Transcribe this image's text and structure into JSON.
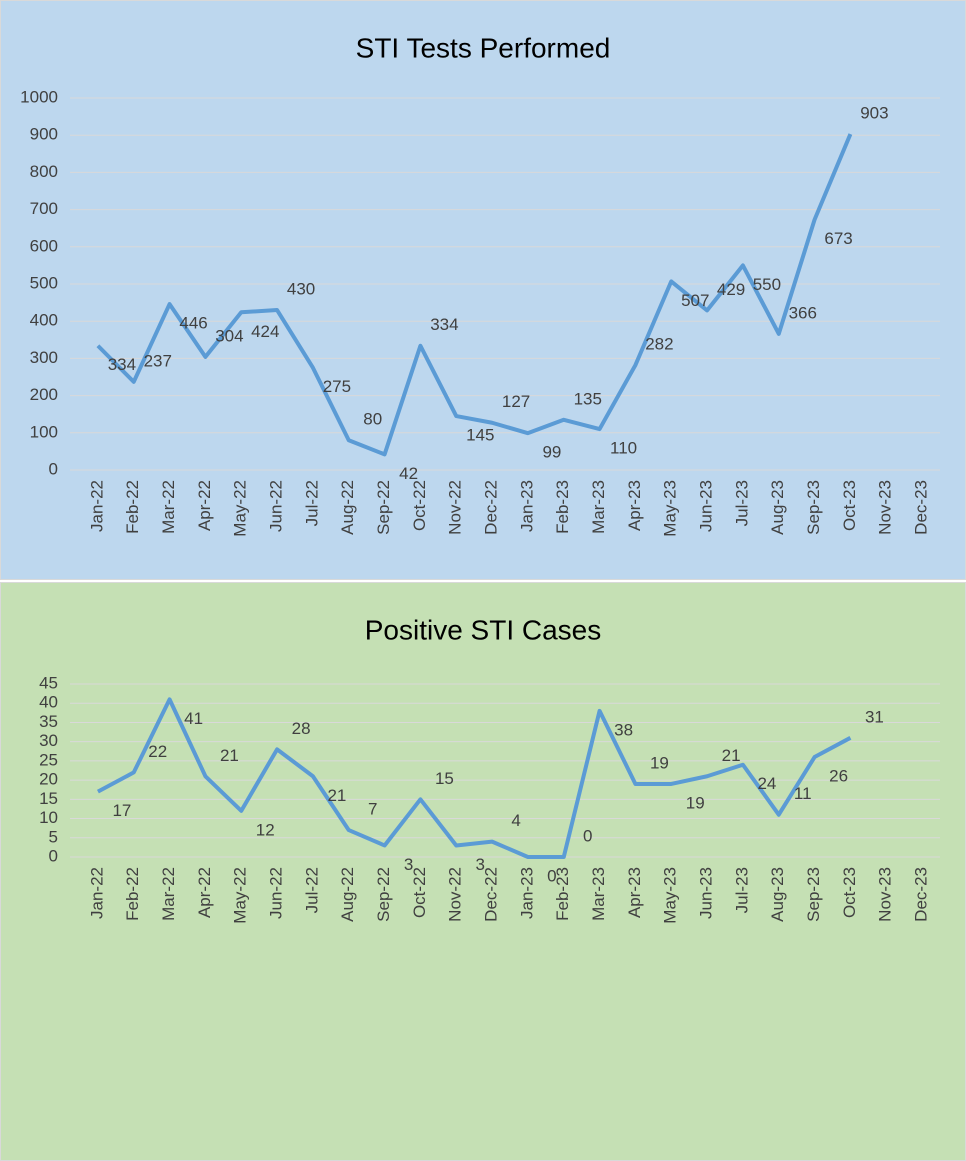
{
  "chart_data": [
    {
      "type": "line",
      "title": "STI Tests Performed",
      "background": "#bdd7ee",
      "categories": [
        "Jan-22",
        "Feb-22",
        "Mar-22",
        "Apr-22",
        "May-22",
        "Jun-22",
        "Jul-22",
        "Aug-22",
        "Sep-22",
        "Oct-22",
        "Nov-22",
        "Dec-22",
        "Jan-23",
        "Feb-23",
        "Mar-23",
        "Apr-23",
        "May-23",
        "Jun-23",
        "Jul-23",
        "Aug-23",
        "Sep-23",
        "Oct-23",
        "Nov-23",
        "Dec-23"
      ],
      "series": [
        {
          "name": "STI Tests Performed",
          "color": "#5b9bd5",
          "values": [
            334,
            237,
            446,
            304,
            424,
            430,
            275,
            80,
            42,
            334,
            145,
            127,
            99,
            135,
            110,
            282,
            507,
            429,
            550,
            366,
            673,
            903,
            null,
            null
          ]
        }
      ],
      "ylim": [
        0,
        1000
      ],
      "yticks": [
        0,
        100,
        200,
        300,
        400,
        500,
        600,
        700,
        800,
        900,
        1000
      ],
      "grid": true
    },
    {
      "type": "line",
      "title": "Positive STI Cases",
      "background": "#c5e0b4",
      "categories": [
        "Jan-22",
        "Feb-22",
        "Mar-22",
        "Apr-22",
        "May-22",
        "Jun-22",
        "Jul-22",
        "Aug-22",
        "Sep-22",
        "Oct-22",
        "Nov-22",
        "Dec-22",
        "Jan-23",
        "Feb-23",
        "Mar-23",
        "Apr-23",
        "May-23",
        "Jun-23",
        "Jul-23",
        "Aug-23",
        "Sep-23",
        "Oct-23",
        "Nov-23",
        "Dec-23"
      ],
      "series": [
        {
          "name": "Positive STI Cases",
          "color": "#5b9bd5",
          "values": [
            17,
            22,
            41,
            21,
            12,
            28,
            21,
            7,
            3,
            15,
            3,
            4,
            0,
            0,
            38,
            19,
            19,
            21,
            24,
            11,
            26,
            31,
            null,
            null
          ]
        }
      ],
      "ylim": [
        0,
        45
      ],
      "yticks": [
        0,
        5,
        10,
        15,
        20,
        25,
        30,
        35,
        40,
        45
      ],
      "grid": true
    }
  ]
}
